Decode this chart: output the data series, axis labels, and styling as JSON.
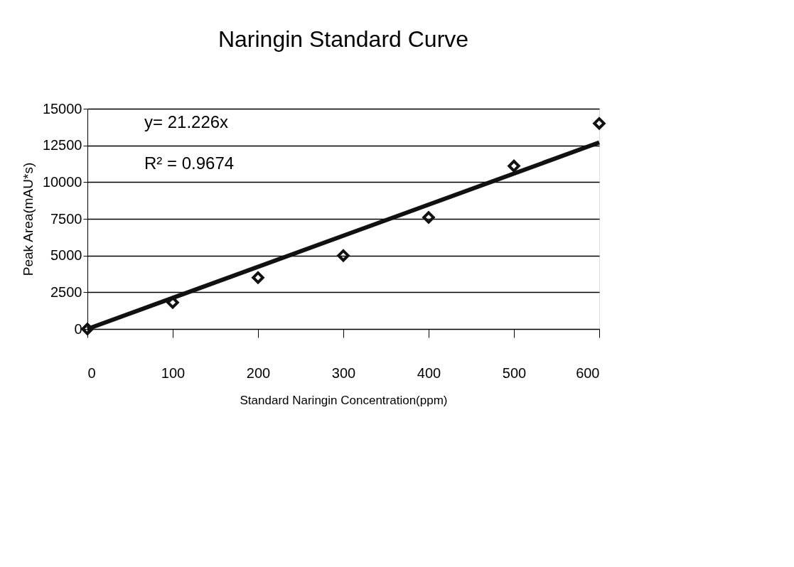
{
  "chart_data": {
    "type": "scatter",
    "title": "Naringin Standard Curve",
    "xlabel": "Standard Naringin Concentration(ppm)",
    "ylabel": "Peak Area(mAU*s)",
    "x": [
      0,
      100,
      200,
      300,
      400,
      500,
      600
    ],
    "series": [
      {
        "color": "#111111",
        "values": [
          0,
          1800,
          3500,
          5000,
          7600,
          11100,
          14000
        ]
      },
      {
        "type": "line",
        "marker": "none",
        "color": "#111111",
        "x": [
          0,
          600
        ],
        "values": [
          0,
          12700
        ]
      }
    ],
    "xlim": [
      0,
      600
    ],
    "xticks": [
      0,
      100,
      200,
      300,
      400,
      500,
      600
    ],
    "ylim": [
      0,
      15000
    ],
    "yticks": [
      0,
      2500,
      5000,
      7500,
      10000,
      12500,
      15000
    ],
    "grid": "y",
    "marker": "diamond",
    "annotations": [
      "y= 21.226x",
      "R² = 0.9674"
    ]
  }
}
